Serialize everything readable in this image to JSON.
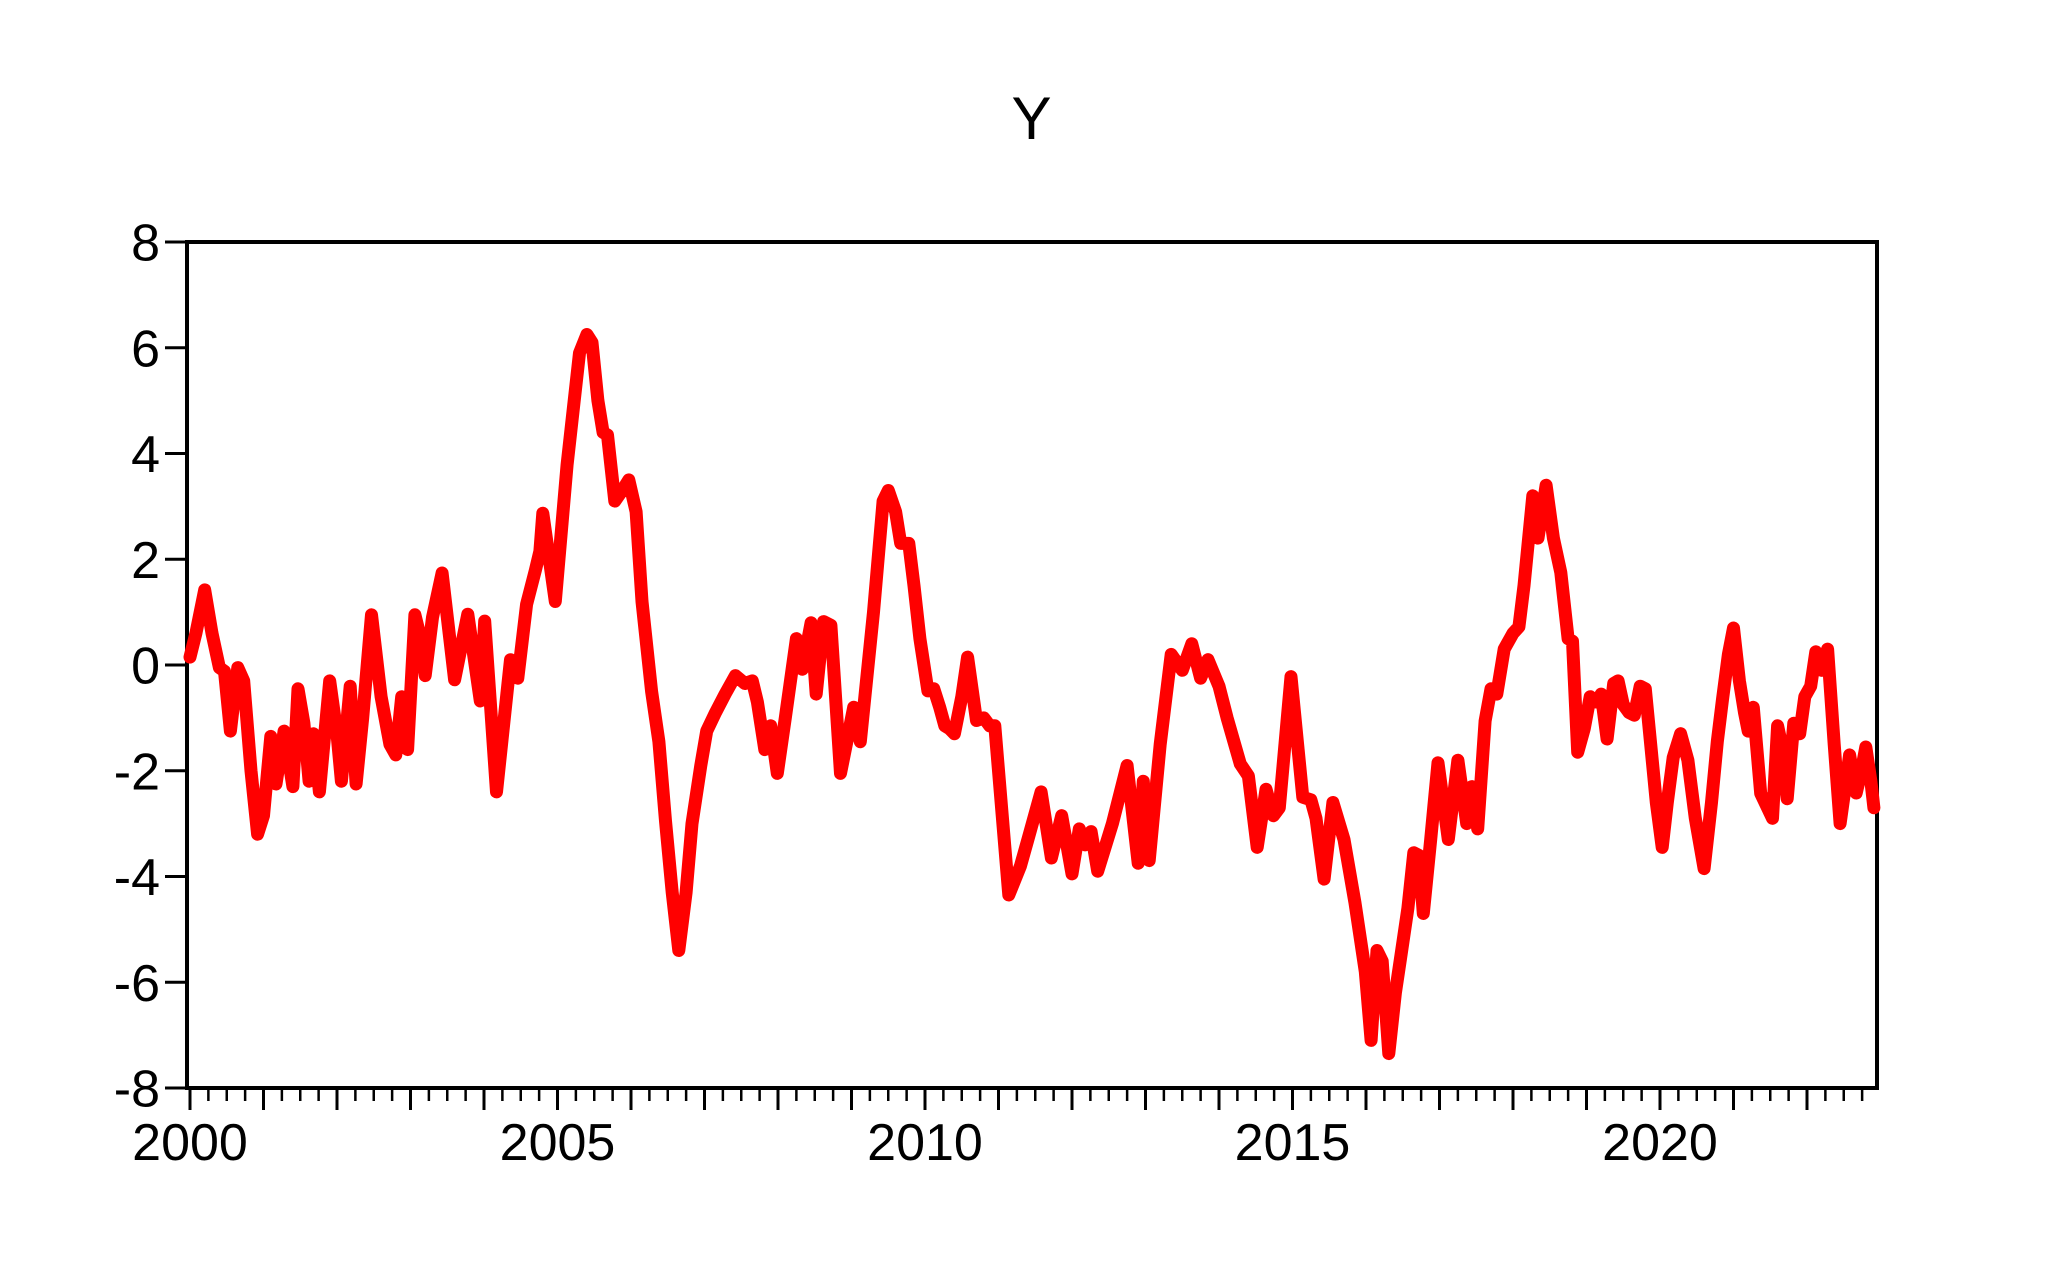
{
  "chart_data": {
    "type": "line",
    "title": "Y",
    "xlabel": "",
    "ylabel": "",
    "grid": false,
    "legend_position": "none",
    "axis_color": "#000000",
    "background_color": "#ffffff",
    "x_range": [
      2000.0,
      2022.95
    ],
    "y_range": [
      -8,
      8
    ],
    "y_ticks": [
      8,
      6,
      4,
      2,
      0,
      -2,
      -4,
      -6,
      -8
    ],
    "x_tick_labels": [
      "2000",
      "2005",
      "2010",
      "2015",
      "2020"
    ],
    "x_tick_label_years": [
      2000,
      2005,
      2010,
      2015,
      2020
    ],
    "x_major_tick_interval_years": 1,
    "x_minor_tick_interval_years": 0.25,
    "series": [
      {
        "name": "Y",
        "color": "#ff0000",
        "line_width": 13,
        "points": [
          [
            2000.0,
            0.15
          ],
          [
            2000.08,
            0.6
          ],
          [
            2000.2,
            1.42
          ],
          [
            2000.3,
            0.6
          ],
          [
            2000.4,
            -0.05
          ],
          [
            2000.47,
            -0.12
          ],
          [
            2000.55,
            -1.25
          ],
          [
            2000.65,
            -0.05
          ],
          [
            2000.73,
            -0.3
          ],
          [
            2000.83,
            -2.0
          ],
          [
            2000.92,
            -3.2
          ],
          [
            2001.0,
            -2.85
          ],
          [
            2001.1,
            -1.35
          ],
          [
            2001.17,
            -2.25
          ],
          [
            2001.28,
            -1.25
          ],
          [
            2001.4,
            -2.3
          ],
          [
            2001.47,
            -0.45
          ],
          [
            2001.55,
            -1.1
          ],
          [
            2001.62,
            -2.2
          ],
          [
            2001.68,
            -1.3
          ],
          [
            2001.76,
            -2.4
          ],
          [
            2001.9,
            -0.3
          ],
          [
            2002.0,
            -1.3
          ],
          [
            2002.06,
            -2.2
          ],
          [
            2002.18,
            -0.4
          ],
          [
            2002.26,
            -2.25
          ],
          [
            2002.35,
            -1.0
          ],
          [
            2002.47,
            0.95
          ],
          [
            2002.6,
            -0.6
          ],
          [
            2002.72,
            -1.5
          ],
          [
            2002.8,
            -1.7
          ],
          [
            2002.88,
            -0.6
          ],
          [
            2002.96,
            -1.6
          ],
          [
            2003.06,
            0.95
          ],
          [
            2003.13,
            0.55
          ],
          [
            2003.2,
            -0.2
          ],
          [
            2003.3,
            0.9
          ],
          [
            2003.43,
            1.74
          ],
          [
            2003.6,
            -0.28
          ],
          [
            2003.78,
            0.96
          ],
          [
            2003.95,
            -0.68
          ],
          [
            2004.01,
            0.83
          ],
          [
            2004.17,
            -2.4
          ],
          [
            2004.36,
            0.1
          ],
          [
            2004.46,
            -0.25
          ],
          [
            2004.58,
            1.15
          ],
          [
            2004.7,
            1.8
          ],
          [
            2004.76,
            2.15
          ],
          [
            2004.8,
            2.87
          ],
          [
            2004.97,
            1.2
          ],
          [
            2005.13,
            3.79
          ],
          [
            2005.3,
            5.9
          ],
          [
            2005.4,
            6.25
          ],
          [
            2005.47,
            6.1
          ],
          [
            2005.55,
            5.0
          ],
          [
            2005.62,
            4.4
          ],
          [
            2005.68,
            4.35
          ],
          [
            2005.78,
            3.1
          ],
          [
            2005.88,
            3.3
          ],
          [
            2005.97,
            3.5
          ],
          [
            2006.07,
            2.9
          ],
          [
            2006.15,
            1.2
          ],
          [
            2006.28,
            -0.5
          ],
          [
            2006.38,
            -1.45
          ],
          [
            2006.47,
            -2.95
          ],
          [
            2006.56,
            -4.3
          ],
          [
            2006.65,
            -5.4
          ],
          [
            2006.75,
            -4.3
          ],
          [
            2006.83,
            -3.0
          ],
          [
            2006.95,
            -1.9
          ],
          [
            2007.03,
            -1.25
          ],
          [
            2007.15,
            -0.9
          ],
          [
            2007.28,
            -0.55
          ],
          [
            2007.42,
            -0.2
          ],
          [
            2007.55,
            -0.35
          ],
          [
            2007.65,
            -0.3
          ],
          [
            2007.72,
            -0.7
          ],
          [
            2007.82,
            -1.6
          ],
          [
            2007.9,
            -1.15
          ],
          [
            2007.99,
            -2.05
          ],
          [
            2008.1,
            -1.0
          ],
          [
            2008.25,
            0.5
          ],
          [
            2008.33,
            -0.08
          ],
          [
            2008.45,
            0.8
          ],
          [
            2008.52,
            -0.55
          ],
          [
            2008.62,
            0.82
          ],
          [
            2008.72,
            0.75
          ],
          [
            2008.85,
            -2.05
          ],
          [
            2009.03,
            -0.8
          ],
          [
            2009.12,
            -1.45
          ],
          [
            2009.3,
            1.0
          ],
          [
            2009.43,
            3.1
          ],
          [
            2009.5,
            3.3
          ],
          [
            2009.6,
            2.9
          ],
          [
            2009.67,
            2.3
          ],
          [
            2009.78,
            2.3
          ],
          [
            2009.85,
            1.5
          ],
          [
            2009.93,
            0.5
          ],
          [
            2010.04,
            -0.49
          ],
          [
            2010.12,
            -0.45
          ],
          [
            2010.2,
            -0.8
          ],
          [
            2010.27,
            -1.15
          ],
          [
            2010.33,
            -1.2
          ],
          [
            2010.4,
            -1.3
          ],
          [
            2010.5,
            -0.6
          ],
          [
            2010.58,
            0.15
          ],
          [
            2010.7,
            -1.05
          ],
          [
            2010.8,
            -1.0
          ],
          [
            2010.88,
            -1.15
          ],
          [
            2010.95,
            -1.15
          ],
          [
            2011.14,
            -4.35
          ],
          [
            2011.3,
            -3.8
          ],
          [
            2011.4,
            -3.3
          ],
          [
            2011.58,
            -2.4
          ],
          [
            2011.72,
            -3.65
          ],
          [
            2011.86,
            -2.85
          ],
          [
            2012.0,
            -3.95
          ],
          [
            2012.1,
            -3.1
          ],
          [
            2012.18,
            -3.4
          ],
          [
            2012.26,
            -3.15
          ],
          [
            2012.35,
            -3.9
          ],
          [
            2012.55,
            -3.0
          ],
          [
            2012.75,
            -1.9
          ],
          [
            2012.9,
            -3.75
          ],
          [
            2012.97,
            -2.2
          ],
          [
            2013.05,
            -3.7
          ],
          [
            2013.2,
            -1.5
          ],
          [
            2013.35,
            0.2
          ],
          [
            2013.5,
            -0.1
          ],
          [
            2013.63,
            0.4
          ],
          [
            2013.75,
            -0.25
          ],
          [
            2013.85,
            0.1
          ],
          [
            2014.0,
            -0.4
          ],
          [
            2014.11,
            -1.0
          ],
          [
            2014.29,
            -1.87
          ],
          [
            2014.4,
            -2.1
          ],
          [
            2014.52,
            -3.45
          ],
          [
            2014.64,
            -2.35
          ],
          [
            2014.74,
            -2.85
          ],
          [
            2014.82,
            -2.7
          ],
          [
            2014.98,
            -0.22
          ],
          [
            2015.07,
            -1.5
          ],
          [
            2015.14,
            -2.5
          ],
          [
            2015.25,
            -2.55
          ],
          [
            2015.32,
            -2.9
          ],
          [
            2015.43,
            -4.05
          ],
          [
            2015.55,
            -2.6
          ],
          [
            2015.7,
            -3.3
          ],
          [
            2015.85,
            -4.5
          ],
          [
            2015.99,
            -5.8
          ],
          [
            2016.07,
            -7.1
          ],
          [
            2016.15,
            -5.4
          ],
          [
            2016.22,
            -5.6
          ],
          [
            2016.31,
            -7.35
          ],
          [
            2016.4,
            -6.2
          ],
          [
            2016.47,
            -5.55
          ],
          [
            2016.57,
            -4.6
          ],
          [
            2016.65,
            -3.55
          ],
          [
            2016.72,
            -3.6
          ],
          [
            2016.78,
            -4.7
          ],
          [
            2016.88,
            -3.3
          ],
          [
            2016.98,
            -1.85
          ],
          [
            2017.12,
            -3.3
          ],
          [
            2017.25,
            -1.8
          ],
          [
            2017.37,
            -3.0
          ],
          [
            2017.44,
            -2.3
          ],
          [
            2017.52,
            -3.1
          ],
          [
            2017.62,
            -1.06
          ],
          [
            2017.7,
            -0.45
          ],
          [
            2017.78,
            -0.55
          ],
          [
            2017.88,
            0.3
          ],
          [
            2018.0,
            0.6
          ],
          [
            2018.08,
            0.72
          ],
          [
            2018.15,
            1.5
          ],
          [
            2018.27,
            3.2
          ],
          [
            2018.34,
            2.4
          ],
          [
            2018.45,
            3.4
          ],
          [
            2018.55,
            2.4
          ],
          [
            2018.65,
            1.75
          ],
          [
            2018.75,
            0.5
          ],
          [
            2018.81,
            0.45
          ],
          [
            2018.88,
            -1.65
          ],
          [
            2018.97,
            -1.2
          ],
          [
            2019.05,
            -0.6
          ],
          [
            2019.13,
            -0.7
          ],
          [
            2019.2,
            -0.55
          ],
          [
            2019.28,
            -1.4
          ],
          [
            2019.37,
            -0.35
          ],
          [
            2019.43,
            -0.3
          ],
          [
            2019.5,
            -0.75
          ],
          [
            2019.58,
            -0.9
          ],
          [
            2019.65,
            -0.95
          ],
          [
            2019.73,
            -0.4
          ],
          [
            2019.8,
            -0.45
          ],
          [
            2019.88,
            -1.6
          ],
          [
            2019.95,
            -2.6
          ],
          [
            2020.03,
            -3.45
          ],
          [
            2020.1,
            -2.6
          ],
          [
            2020.18,
            -1.75
          ],
          [
            2020.28,
            -1.3
          ],
          [
            2020.38,
            -1.8
          ],
          [
            2020.48,
            -2.9
          ],
          [
            2020.6,
            -3.85
          ],
          [
            2020.7,
            -2.6
          ],
          [
            2020.78,
            -1.45
          ],
          [
            2020.85,
            -0.65
          ],
          [
            2020.93,
            0.2
          ],
          [
            2021.0,
            0.7
          ],
          [
            2021.08,
            -0.3
          ],
          [
            2021.15,
            -0.9
          ],
          [
            2021.2,
            -1.25
          ],
          [
            2021.27,
            -0.8
          ],
          [
            2021.37,
            -2.43
          ],
          [
            2021.47,
            -2.72
          ],
          [
            2021.53,
            -2.9
          ],
          [
            2021.6,
            -1.15
          ],
          [
            2021.67,
            -1.6
          ],
          [
            2021.73,
            -2.53
          ],
          [
            2021.82,
            -1.1
          ],
          [
            2021.9,
            -1.3
          ],
          [
            2021.97,
            -0.6
          ],
          [
            2022.05,
            -0.4
          ],
          [
            2022.12,
            0.25
          ],
          [
            2022.2,
            -0.1
          ],
          [
            2022.28,
            0.3
          ],
          [
            2022.37,
            -1.5
          ],
          [
            2022.45,
            -3.0
          ],
          [
            2022.53,
            -2.2
          ],
          [
            2022.58,
            -1.7
          ],
          [
            2022.67,
            -2.42
          ],
          [
            2022.74,
            -2.0
          ],
          [
            2022.8,
            -1.55
          ],
          [
            2022.87,
            -2.2
          ],
          [
            2022.91,
            -2.7
          ]
        ]
      }
    ]
  }
}
